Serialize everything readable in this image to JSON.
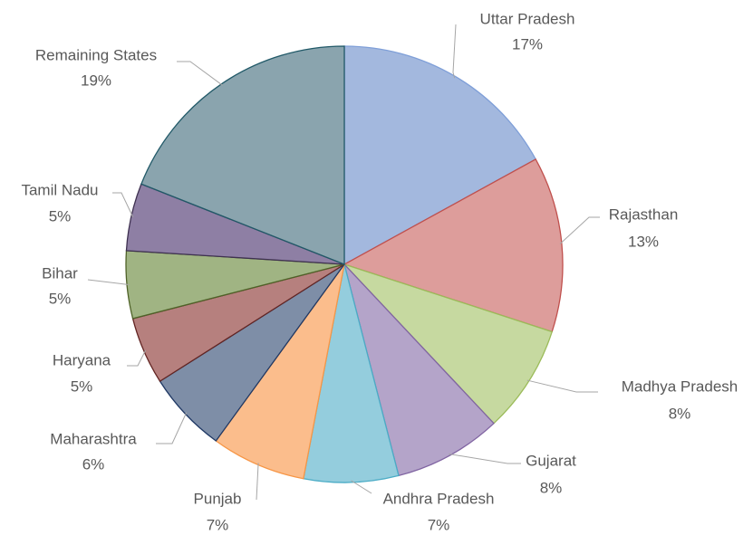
{
  "chart_data": {
    "type": "pie",
    "categories": [
      "Uttar Pradesh",
      "Rajasthan",
      "Madhya Pradesh",
      "Gujarat",
      "Andhra Pradesh",
      "Punjab",
      "Maharashtra",
      "Haryana",
      "Bihar",
      "Tamil Nadu",
      "Remaining States"
    ],
    "values": [
      17,
      13,
      8,
      8,
      7,
      7,
      6,
      5,
      5,
      5,
      19
    ],
    "value_labels": [
      "17%",
      "13%",
      "8%",
      "8%",
      "7%",
      "7%",
      "6%",
      "5%",
      "5%",
      "5%",
      "19%"
    ],
    "colors": [
      "#a3b8de",
      "#dd9d9b",
      "#c6d9a0",
      "#b4a4c9",
      "#94cddd",
      "#fbbd8c",
      "#7e8ea7",
      "#b6807e",
      "#a0b483",
      "#8e7fa4",
      "#8aa4ae"
    ],
    "edge_colors": [
      "#7f9fd8",
      "#c0504d",
      "#9bbb59",
      "#8064a2",
      "#4bacc6",
      "#f79646",
      "#1f3864",
      "#632523",
      "#4f6228",
      "#3f3151",
      "#215968"
    ]
  }
}
